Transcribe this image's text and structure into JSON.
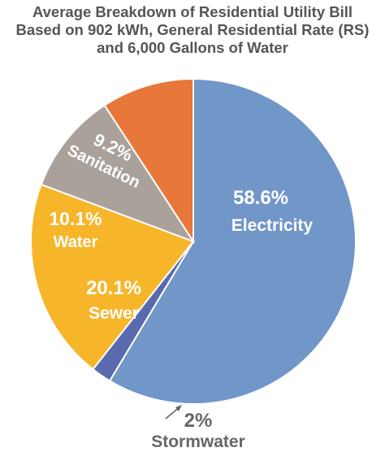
{
  "chart_data": {
    "type": "pie",
    "title_lines": [
      "Average Breakdown of Residential Utility Bill",
      "Based on 902 kWh, General Residential Rate (RS)",
      "and 6,000 Gallons of Water"
    ],
    "slices": [
      {
        "label": "Electricity",
        "value_label": "58.6%",
        "value": 58.6,
        "color": "#7196C8"
      },
      {
        "label": "Stormwater",
        "value_label": "2%",
        "value": 2.0,
        "color": "#5A6AAE"
      },
      {
        "label": "Sewer",
        "value_label": "20.1%",
        "value": 20.1,
        "color": "#F7B52A"
      },
      {
        "label": "Water",
        "value_label": "10.1%",
        "value": 10.1,
        "color": "#AAA19B"
      },
      {
        "label": "Sanitation",
        "value_label": "9.2%",
        "value": 9.2,
        "color": "#E8783A"
      }
    ],
    "start_at": "top",
    "direction": "clockwise",
    "outside_label_color": "#666666"
  }
}
